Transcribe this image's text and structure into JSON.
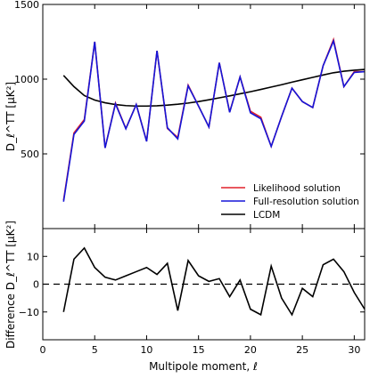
{
  "chart_data": [
    {
      "type": "line",
      "ylabel": "D_ℓ^TT [μK²]",
      "ylim": [
        0,
        1500
      ],
      "xlim": [
        0,
        31
      ],
      "yticks": [
        500,
        1000,
        1500
      ],
      "legend_position": "lower-right",
      "x": [
        2,
        3,
        4,
        5,
        6,
        7,
        8,
        9,
        10,
        11,
        12,
        13,
        14,
        15,
        16,
        17,
        18,
        19,
        20,
        21,
        22,
        23,
        24,
        25,
        26,
        27,
        28,
        29,
        30,
        31
      ],
      "series": [
        {
          "name": "Likelihood solution",
          "color": "#e0202a",
          "values": [
            190,
            640,
            730,
            1250,
            540,
            840,
            670,
            830,
            585,
            1190,
            670,
            610,
            960,
            820,
            680,
            1110,
            780,
            1015,
            785,
            745,
            550,
            750,
            940,
            850,
            810,
            1090,
            1265,
            950,
            1050,
            1050
          ]
        },
        {
          "name": "Full-resolution solution",
          "color": "#1515d8",
          "values": [
            180,
            630,
            720,
            1250,
            540,
            835,
            668,
            830,
            583,
            1190,
            675,
            600,
            955,
            820,
            680,
            1110,
            778,
            1015,
            775,
            735,
            550,
            750,
            940,
            850,
            810,
            1090,
            1255,
            950,
            1045,
            1050
          ]
        },
        {
          "name": "LCDM",
          "color": "#000000",
          "values": [
            1025,
            950,
            890,
            860,
            842,
            830,
            823,
            820,
            820,
            822,
            826,
            832,
            840,
            850,
            862,
            875,
            888,
            902,
            916,
            931,
            947,
            963,
            980,
            996,
            1012,
            1028,
            1043,
            1053,
            1060,
            1065
          ]
        }
      ]
    },
    {
      "type": "line",
      "xlabel": "Multipole moment, ℓ",
      "ylabel": "Difference D_ℓ^TT [μK²]",
      "xlim": [
        0,
        31
      ],
      "ylim": [
        -20,
        20
      ],
      "xticks": [
        0,
        5,
        10,
        15,
        20,
        25,
        30
      ],
      "yticks": [
        -10,
        0,
        10
      ],
      "zero_line": "dashed",
      "x": [
        2,
        3,
        4,
        5,
        6,
        7,
        8,
        9,
        10,
        11,
        12,
        13,
        14,
        15,
        16,
        17,
        18,
        19,
        20,
        21,
        22,
        23,
        24,
        25,
        26,
        27,
        28,
        29,
        30,
        31
      ],
      "series": [
        {
          "color": "#000000",
          "values": [
            -10,
            9,
            13,
            6,
            2.5,
            1.5,
            3,
            4.5,
            6,
            3.5,
            7.5,
            -9.5,
            8.5,
            3,
            1,
            2,
            -4.5,
            1.5,
            -9,
            -11,
            6.5,
            -5,
            -11,
            -1.5,
            -4.5,
            7,
            9,
            4.5,
            -3,
            -9
          ]
        }
      ]
    }
  ]
}
